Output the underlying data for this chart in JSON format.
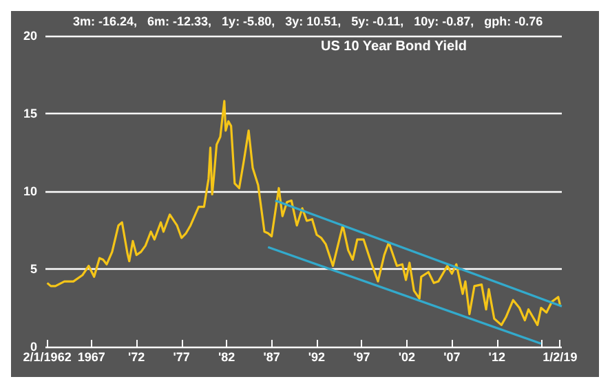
{
  "chart_data": {
    "type": "line",
    "title": "US 10 Year Bond Yield",
    "annotations": [
      "3m: -16.24,   6m: -12.33,   1y: -5.80,   3y: 10.51,   5y: -0.11,   10y: -0.87,   gph: -0.76"
    ],
    "xlim": [
      1961.9,
      2019.2
    ],
    "xticks": [
      {
        "value": 1962.1,
        "label": "2/1/1962"
      },
      1967,
      {
        "value": 1972,
        "label": "'72"
      },
      {
        "value": 1977,
        "label": "'77"
      },
      {
        "value": 1982,
        "label": "'82"
      },
      {
        "value": 1987,
        "label": "'87"
      },
      {
        "value": 1992,
        "label": "'92"
      },
      {
        "value": 1997,
        "label": "'97"
      },
      {
        "value": 2002,
        "label": "'02"
      },
      {
        "value": 2007,
        "label": "'07"
      },
      {
        "value": 2012,
        "label": "'12"
      },
      {
        "value": 2017,
        "label": null
      },
      {
        "value": 2019,
        "label": "1/2/19"
      }
    ],
    "ylim": [
      0,
      20
    ],
    "yticks": [
      0,
      5,
      10,
      15,
      20
    ],
    "grid": "y",
    "marker": "none",
    "line_style": "solid",
    "series": [
      {
        "color": "#f5c518",
        "x": [
          1962.1,
          1962.5,
          1963,
          1964,
          1965,
          1966,
          1966.7,
          1967.3,
          1967.9,
          1968.3,
          1968.7,
          1969.3,
          1970,
          1970.4,
          1971,
          1971.2,
          1971.6,
          1972,
          1972.5,
          1973,
          1973.6,
          1974,
          1974.7,
          1975,
          1975.7,
          1976.5,
          1977,
          1977.5,
          1978,
          1978.9,
          1979.5,
          1980,
          1980.2,
          1980.4,
          1980.6,
          1980.9,
          1981.3,
          1981.75,
          1981.9,
          1982.2,
          1982.5,
          1982.9,
          1983.4,
          1983.9,
          1984.45,
          1984.9,
          1985.5,
          1986.2,
          1986.6,
          1987,
          1987.8,
          1988.2,
          1988.7,
          1989.2,
          1989.8,
          1990.4,
          1990.9,
          1991.5,
          1992,
          1992.5,
          1993,
          1993.8,
          1994.9,
          1995.5,
          1996,
          1996.5,
          1997.2,
          1998,
          1998.8,
          1999.5,
          2000,
          2000.9,
          2001.5,
          2001.9,
          2002.3,
          2002.8,
          2003.4,
          2003.6,
          2004.4,
          2005,
          2005.5,
          2006.5,
          2007,
          2007.5,
          2008.2,
          2008.5,
          2008.95,
          2009.5,
          2010.3,
          2010.8,
          2011.1,
          2011.7,
          2012.5,
          2013,
          2013.8,
          2014.5,
          2015.1,
          2015.5,
          2016.5,
          2016.9,
          2017.5,
          2018.1,
          2018.8,
          2019
        ],
        "values": [
          4.1,
          3.9,
          3.9,
          4.2,
          4.2,
          4.6,
          5.2,
          4.5,
          5.7,
          5.6,
          5.3,
          6.1,
          7.8,
          8.0,
          6.0,
          5.5,
          6.8,
          5.9,
          6.1,
          6.5,
          7.4,
          6.9,
          8.0,
          7.4,
          8.5,
          7.8,
          7.0,
          7.3,
          7.8,
          9.0,
          9.0,
          10.8,
          12.8,
          9.8,
          11.0,
          13.0,
          13.5,
          15.8,
          13.9,
          14.5,
          14.2,
          10.5,
          10.2,
          11.9,
          13.9,
          11.5,
          10.4,
          7.4,
          7.3,
          7.1,
          10.2,
          8.4,
          9.3,
          9.4,
          7.8,
          8.9,
          8.1,
          8.2,
          7.2,
          7.0,
          6.6,
          5.2,
          7.8,
          6.2,
          5.6,
          6.9,
          6.9,
          5.5,
          4.2,
          5.9,
          6.7,
          5.2,
          5.3,
          4.3,
          5.4,
          3.6,
          3.1,
          4.5,
          4.8,
          4.1,
          4.2,
          5.2,
          4.7,
          5.3,
          3.4,
          4.2,
          2.1,
          3.9,
          4.0,
          2.4,
          3.7,
          1.8,
          1.4,
          1.9,
          3.0,
          2.5,
          1.7,
          2.4,
          1.4,
          2.5,
          2.2,
          2.9,
          3.2,
          2.7
        ]
      },
      {
        "color": "#33aacc",
        "x": [
          1987.4,
          2019.2
        ],
        "values": [
          9.4,
          2.6
        ]
      },
      {
        "color": "#33aacc",
        "x": [
          1986.6,
          2016.9
        ],
        "values": [
          6.4,
          0.2
        ]
      }
    ]
  }
}
